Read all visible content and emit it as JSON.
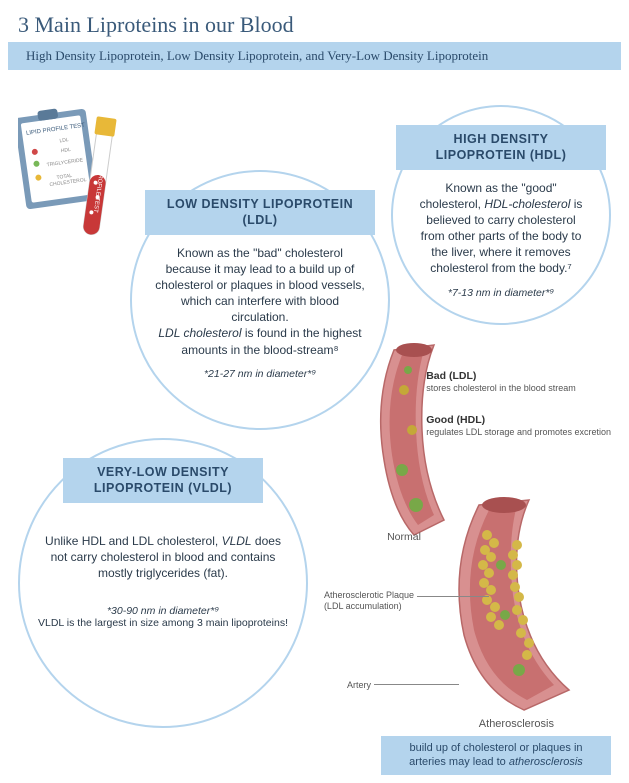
{
  "title": "3 Main Liproteins in our Blood",
  "subtitle": "High Density Lipoprotein, Low Density Lipoprotein, and Very-Low Density Lipoprotein",
  "hdl": {
    "label": "HIGH DENSITY LIPOPROTEIN (HDL)",
    "desc": "Known as the \"good\" cholesterol, <i>HDL-cholesterol</i> is believed to carry cholesterol from other parts of the body to the liver, where it removes cholesterol from the body.⁷",
    "diam": "*7-13 nm in diameter*⁹"
  },
  "ldl": {
    "label": "LOW DENSITY LIPOPROTEIN (LDL)",
    "desc": "Known as the \"bad\" cholesterol because it may lead to a build up of cholesterol or plaques in blood vessels, which can interfere with blood circulation.<br><i>LDL cholesterol</i> is found in the highest amounts in the blood-stream⁸",
    "diam": "*21-27 nm in diameter*⁹"
  },
  "vldl": {
    "label": "VERY-LOW DENSITY LIPOPROTEIN (VLDL)",
    "desc": "Unlike HDL and LDL cholesterol, <i>VLDL</i> does not carry cholesterol in blood and contains mostly triglycerides (fat).",
    "diam": "*30-90 nm in diameter*⁹",
    "extra": "VLDL is the largest in size among 3 main lipoproteins!"
  },
  "legend": {
    "bad": {
      "title": "Bad (LDL)",
      "sub": "stores cholesterol in the blood stream"
    },
    "good": {
      "title": "Good (HDL)",
      "sub": "regulates LDL storage and promotes excretion"
    }
  },
  "vessel": {
    "normal": "Normal",
    "ath": "Atherosclerosis",
    "plaque": "Atherosclerotic Plaque<br>(LDL accumulation)",
    "artery": "Artery"
  },
  "note": "build up of cholesterol or plaques in arteries may lead to <i>atherosclerosis</i>",
  "colors": {
    "accent": "#b4d4ed",
    "text": "#2a4a6a",
    "bad": "#c4a838",
    "good": "#6a9838",
    "vessel": "#d88888"
  }
}
